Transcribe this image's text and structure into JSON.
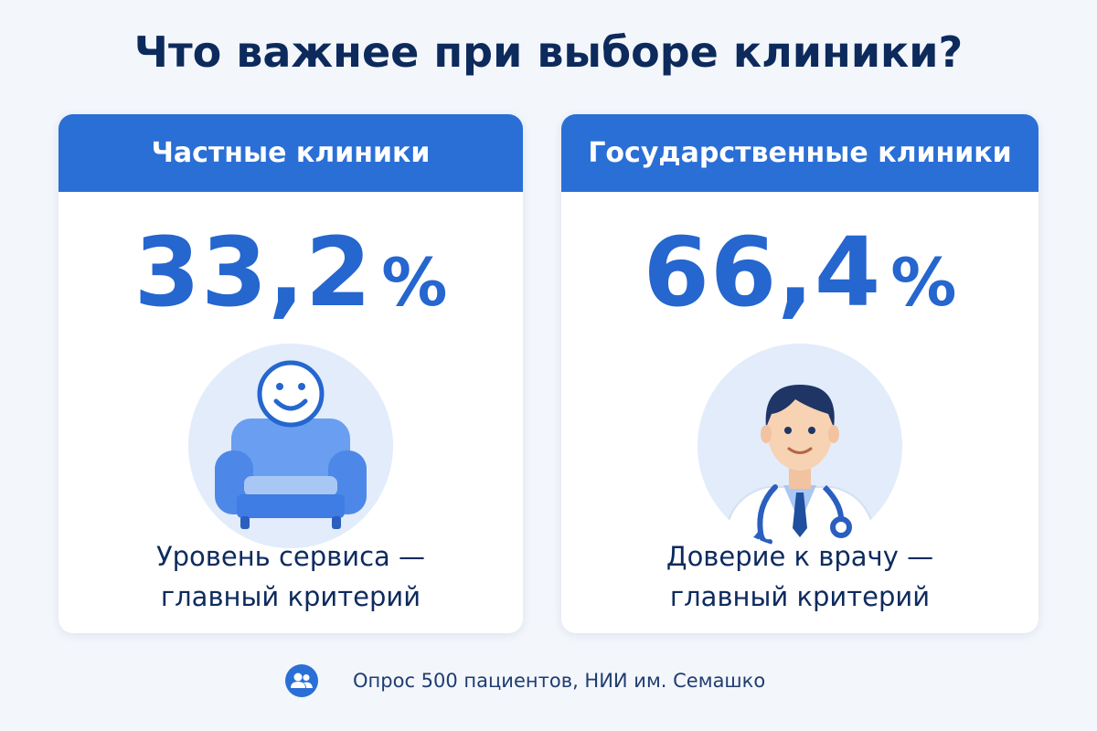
{
  "header": {
    "title": "Что важнее при выборе клиники?"
  },
  "cards": [
    {
      "title": "Частные клиники",
      "value": "33,2",
      "unit": "%",
      "caption": [
        "Уровень сервиса —",
        "главный критерий"
      ]
    },
    {
      "title": "Государственные клиники",
      "value": "66,4",
      "unit": "%",
      "caption": [
        "Доверие к врачу —",
        "главный критерий"
      ]
    }
  ],
  "footer": {
    "text": "Опрос 500 пациентов, НИИ им. Семашко"
  }
}
